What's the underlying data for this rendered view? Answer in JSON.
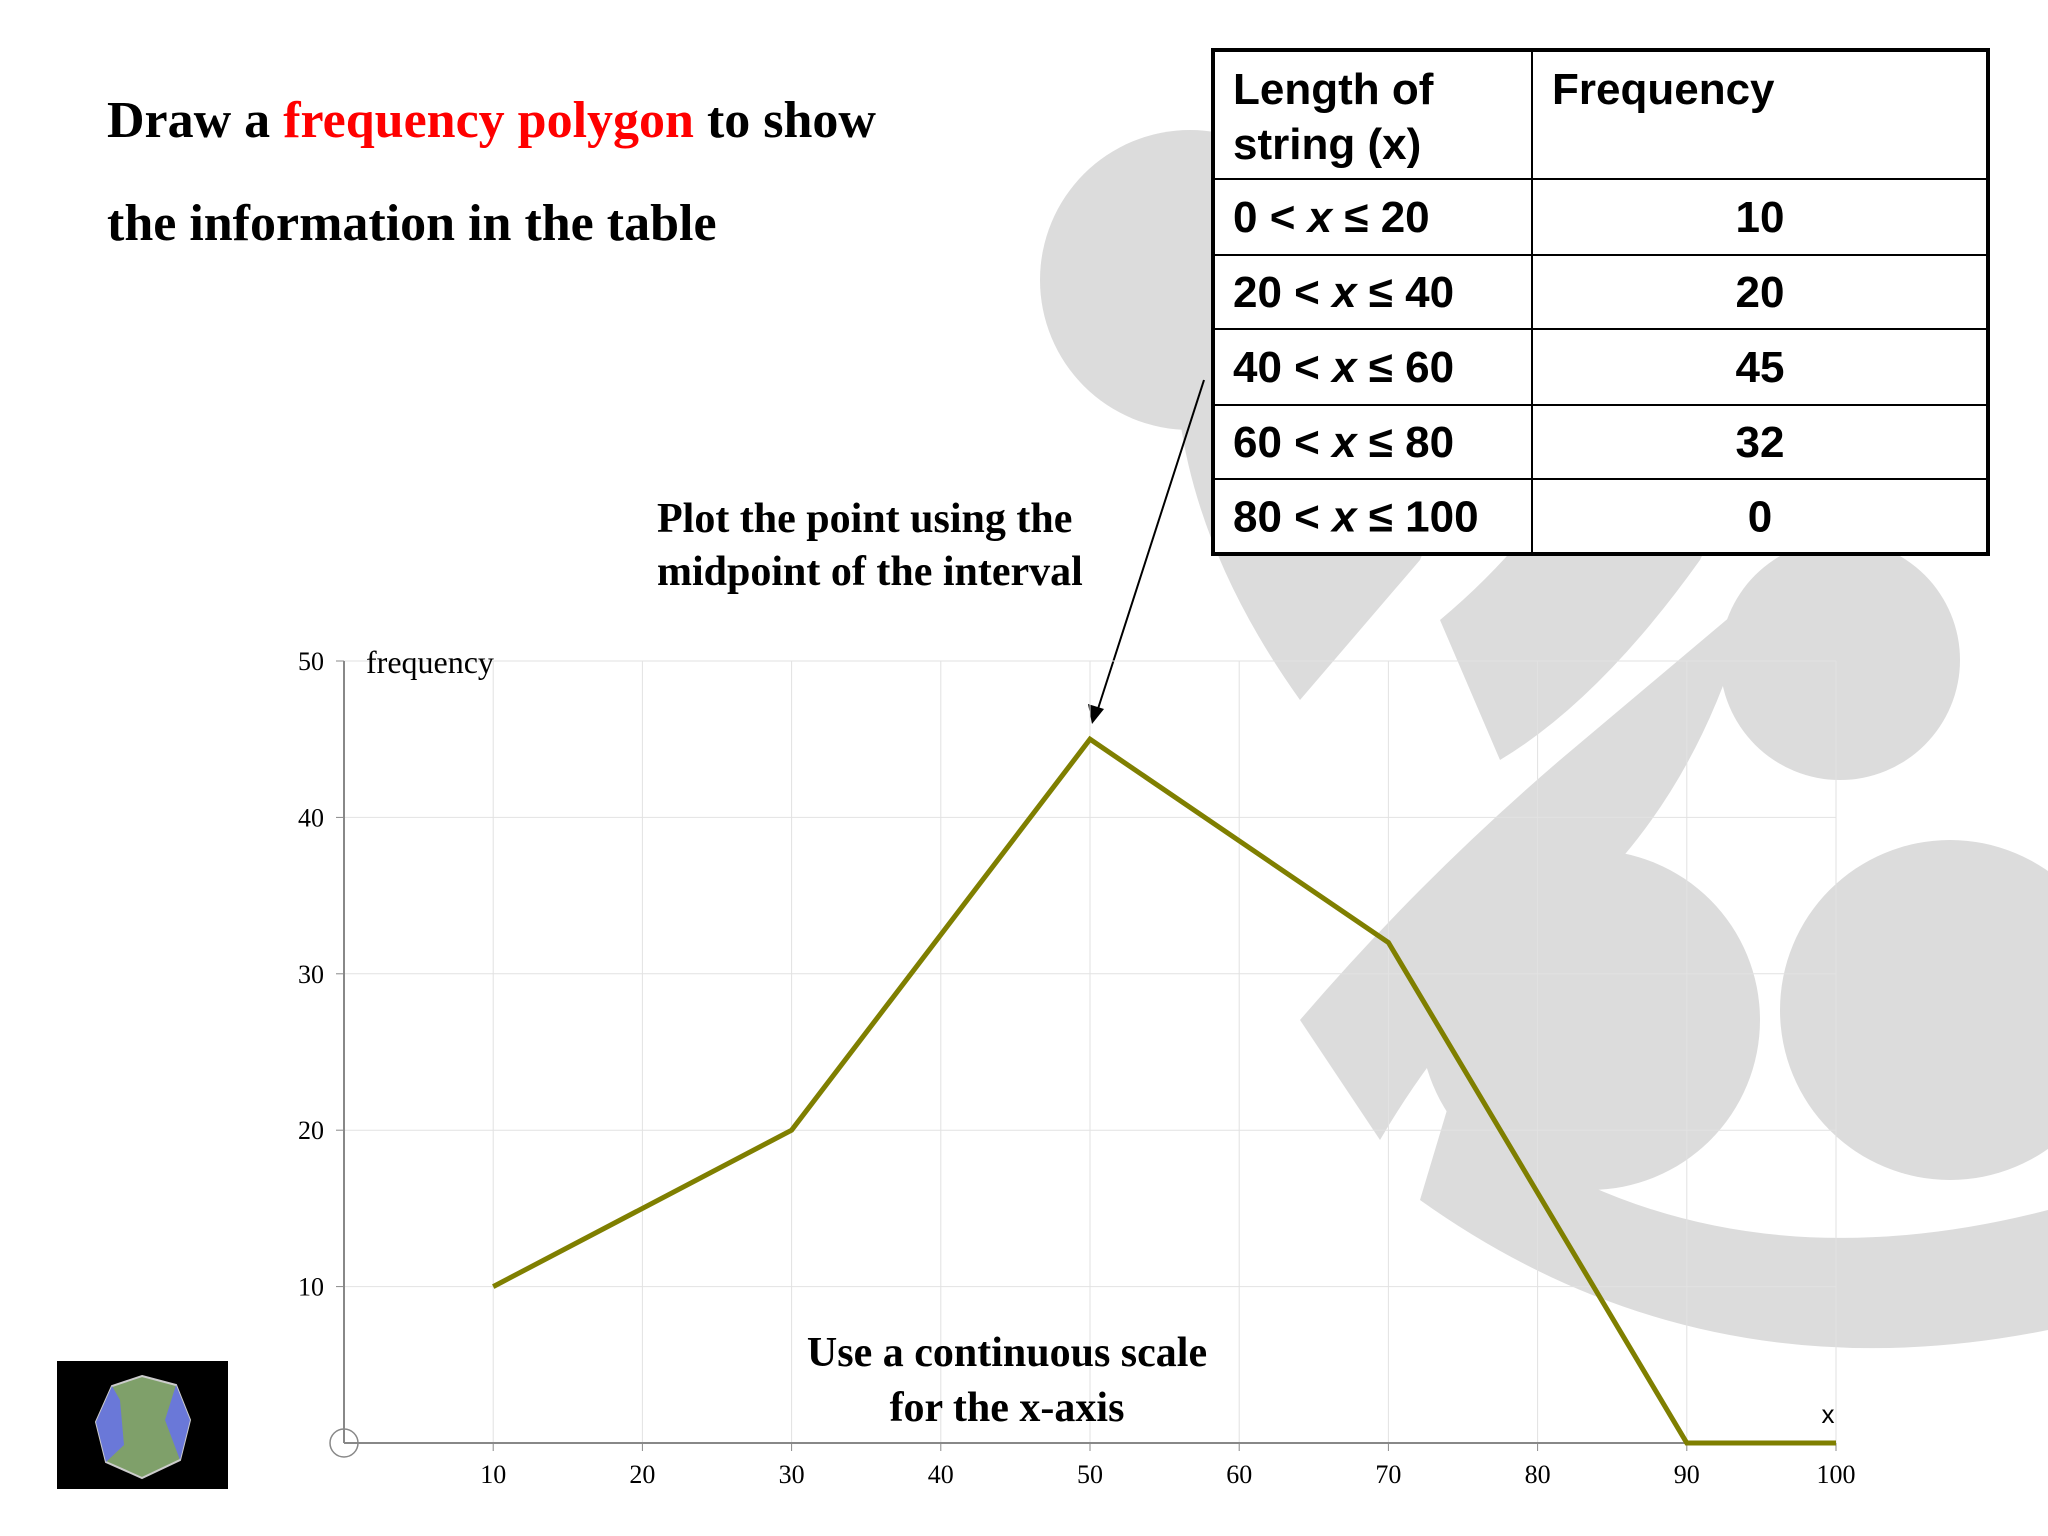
{
  "heading": {
    "line1": [
      "Draw a ",
      "frequency polygon",
      " to show"
    ],
    "line2": "the information in the table"
  },
  "table": {
    "header": [
      [
        "Length of",
        "string (x)"
      ],
      "Frequency"
    ],
    "rows": [
      {
        "interval": [
          "0 < ",
          "x",
          " ≤ 20"
        ],
        "frequency": 10
      },
      {
        "interval": [
          "20 < ",
          "x",
          " ≤ 40"
        ],
        "frequency": 20
      },
      {
        "interval": [
          "40 < ",
          "x",
          " ≤ 60"
        ],
        "frequency": 45
      },
      {
        "interval": [
          "60 < ",
          "x",
          " ≤ 80"
        ],
        "frequency": 32
      },
      {
        "interval": [
          "80 < ",
          "x",
          " ≤ 100"
        ],
        "frequency": 0
      }
    ]
  },
  "annotations": {
    "midpoint": [
      "Plot the point using the",
      "midpoint of the interval"
    ],
    "scale": [
      "Use a continuous scale",
      "for the x-axis"
    ]
  },
  "chart_data": {
    "type": "line",
    "x_label": "x",
    "y_label": "frequency",
    "x": [
      10,
      30,
      50,
      70,
      90,
      100
    ],
    "series": [
      {
        "name": "frequency",
        "color": "#7f7f00",
        "values": [
          10,
          20,
          45,
          32,
          0,
          0
        ]
      }
    ],
    "xlim": [
      0,
      100
    ],
    "ylim": [
      0,
      50
    ],
    "xticks": [
      10,
      20,
      30,
      40,
      50,
      60,
      70,
      80,
      90,
      100
    ],
    "yticks": [
      10,
      20,
      30,
      40,
      50
    ],
    "grid": true
  }
}
